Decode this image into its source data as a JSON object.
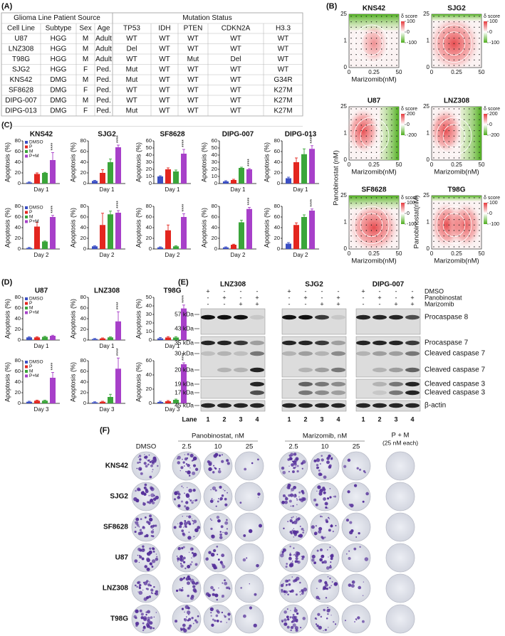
{
  "panel_labels": [
    "(A)",
    "(B)",
    "(C)",
    "(D)",
    "(E)",
    "(F)"
  ],
  "table": {
    "group_headers": [
      "Glioma Line Patient Source",
      "Mutation Status"
    ],
    "columns": [
      "Cell Line",
      "Subtype",
      "Sex",
      "Age",
      "TP53",
      "IDH",
      "PTEN",
      "CDKN2A",
      "H3.3"
    ],
    "rows": [
      [
        "U87",
        "HGG",
        "M",
        "Adult",
        "WT",
        "WT",
        "WT",
        "WT",
        "WT"
      ],
      [
        "LNZ308",
        "HGG",
        "M",
        "Adult",
        "Del",
        "WT",
        "WT",
        "WT",
        "WT"
      ],
      [
        "T98G",
        "HGG",
        "M",
        "Adult",
        "WT",
        "WT",
        "Mut",
        "Del",
        "WT"
      ],
      [
        "SJG2",
        "HGG",
        "F",
        "Ped.",
        "Mut",
        "WT",
        "WT",
        "WT",
        "WT"
      ],
      [
        "KNS42",
        "DMG",
        "M",
        "Ped.",
        "Mut",
        "WT",
        "WT",
        "WT",
        "G34R"
      ],
      [
        "SF8628",
        "DMG",
        "F",
        "Ped.",
        "WT",
        "WT",
        "WT",
        "WT",
        "K27M"
      ],
      [
        "DIPG-007",
        "DMG",
        "M",
        "Ped.",
        "WT",
        "WT",
        "WT",
        "WT",
        "K27M"
      ],
      [
        "DIPG-013",
        "DMG",
        "F",
        "Ped.",
        "Mut",
        "WT",
        "WT",
        "WT",
        "K27M"
      ]
    ]
  },
  "synergy": {
    "colorbar_title": "δ score",
    "x_tick_labels": [
      "0",
      "0.25",
      "50"
    ],
    "y_tick_labels": [
      "0",
      "1",
      "25"
    ],
    "y_label": "Panobinostat (nM)",
    "y_label_t98g": "Panobinostat(nM)",
    "plots": [
      {
        "title": "KNS42",
        "x_label": "Marizomib(nM)",
        "colorbar_ticks": [
          100,
          0,
          -100
        ]
      },
      {
        "title": "SJG2",
        "colorbar_ticks": [
          100,
          0,
          -100
        ]
      },
      {
        "title": "U87",
        "x_label": "Marizomib(nM)",
        "colorbar_ticks": [
          200,
          0,
          -200
        ]
      },
      {
        "title": "LNZ308",
        "x_label": "Marizomib(nM)",
        "colorbar_ticks": [
          200,
          0,
          -200
        ]
      },
      {
        "title": "SF8628",
        "x_label": "Marizomib(nM)",
        "colorbar_ticks": [
          100,
          0,
          -100
        ]
      },
      {
        "title": "T98G",
        "x_label": "Marizomib(nM)",
        "colorbar_ticks": [
          100,
          0,
          -100
        ]
      }
    ]
  },
  "apoptosis": {
    "y_label": "Apoptosis (%)",
    "legend": [
      {
        "name": "DMSO",
        "color": "#3b4fc4"
      },
      {
        "name": "P",
        "color": "#e3261f"
      },
      {
        "name": "M",
        "color": "#3aa53a"
      },
      {
        "name": "P+M",
        "color": "#a740c9"
      }
    ],
    "panel_c": [
      {
        "title": "KNS42",
        "day": "Day 1",
        "values": [
          2,
          18,
          20,
          44
        ],
        "errors": [
          1,
          2,
          1,
          14
        ],
        "ylim": [
          0,
          80
        ],
        "yticks": [
          0,
          20,
          40,
          60,
          80
        ],
        "stars": "****",
        "show_legend": true
      },
      {
        "title": "SJG2",
        "day": "Day 1",
        "values": [
          5,
          20,
          40,
          68
        ],
        "errors": [
          1,
          6,
          6,
          4
        ],
        "ylim": [
          0,
          80
        ],
        "yticks": [
          0,
          20,
          40,
          60,
          80
        ],
        "stars": "****"
      },
      {
        "title": "SF8628",
        "day": "Day 1",
        "values": [
          10,
          20,
          17,
          42
        ],
        "errors": [
          1,
          2,
          2,
          6
        ],
        "ylim": [
          0,
          60
        ],
        "yticks": [
          0,
          10,
          20,
          30,
          40,
          50,
          60
        ],
        "stars": "****"
      },
      {
        "title": "DIPG-007",
        "day": "Day 1",
        "values": [
          3,
          5,
          22,
          20
        ],
        "errors": [
          1,
          1,
          1,
          1
        ],
        "ylim": [
          0,
          60
        ],
        "yticks": [
          0,
          10,
          20,
          30,
          40,
          50,
          60
        ],
        "stars": "****"
      },
      {
        "title": "DIPG-013",
        "day": "Day 1",
        "values": [
          10,
          40,
          55,
          65
        ],
        "errors": [
          2,
          8,
          10,
          6
        ],
        "ylim": [
          0,
          80
        ],
        "yticks": [
          0,
          20,
          40,
          60,
          80
        ],
        "stars": "****"
      },
      {
        "day": "Day 2",
        "values": [
          2,
          42,
          14,
          60
        ],
        "errors": [
          1,
          8,
          1,
          3
        ],
        "ylim": [
          0,
          80
        ],
        "yticks": [
          0,
          20,
          40,
          60,
          80
        ],
        "stars": "****",
        "show_legend": true
      },
      {
        "day": "Day 2",
        "values": [
          5,
          45,
          65,
          68
        ],
        "errors": [
          1,
          22,
          6,
          4
        ],
        "ylim": [
          0,
          80
        ],
        "yticks": [
          0,
          20,
          40,
          60,
          80
        ],
        "stars": "****"
      },
      {
        "day": "Day 2",
        "values": [
          3,
          35,
          5,
          60
        ],
        "errors": [
          1,
          10,
          1,
          6
        ],
        "ylim": [
          0,
          80
        ],
        "yticks": [
          0,
          20,
          40,
          60,
          80
        ],
        "stars": "****"
      },
      {
        "day": "Day 2",
        "values": [
          3,
          8,
          50,
          75
        ],
        "errors": [
          1,
          1,
          4,
          3
        ],
        "ylim": [
          0,
          80
        ],
        "yticks": [
          0,
          20,
          40,
          60,
          80
        ],
        "stars": "****"
      },
      {
        "day": "Day 2",
        "values": [
          10,
          45,
          60,
          72
        ],
        "errors": [
          2,
          4,
          4,
          3
        ],
        "ylim": [
          0,
          80
        ],
        "yticks": [
          0,
          20,
          40,
          60,
          80
        ],
        "stars": "****"
      }
    ],
    "panel_d": [
      {
        "title": "U87",
        "day": "Day 1",
        "values": [
          5,
          5,
          6,
          8
        ],
        "errors": [
          1,
          1,
          1,
          1
        ],
        "ylim": [
          0,
          80
        ],
        "yticks": [
          0,
          20,
          40,
          60,
          80
        ],
        "show_legend": true
      },
      {
        "title": "LNZ308",
        "day": "Day 1",
        "values": [
          2,
          3,
          5,
          35
        ],
        "errors": [
          1,
          1,
          1,
          18
        ],
        "ylim": [
          0,
          80
        ],
        "yticks": [
          0,
          20,
          40,
          60,
          80
        ],
        "stars": "****"
      },
      {
        "title": "T98G",
        "day": "Day 1",
        "values": [
          2,
          3,
          3,
          37
        ],
        "errors": [
          1,
          1,
          1,
          4
        ],
        "ylim": [
          0,
          50
        ],
        "yticks": [
          0,
          10,
          20,
          30,
          40,
          50
        ],
        "stars": "****"
      },
      {
        "day": "Day 3",
        "values": [
          3,
          5,
          5,
          48
        ],
        "errors": [
          1,
          1,
          1,
          10
        ],
        "ylim": [
          0,
          80
        ],
        "yticks": [
          0,
          20,
          40,
          60,
          80
        ],
        "stars": "****",
        "show_legend": true
      },
      {
        "day": "Day 3",
        "values": [
          2,
          3,
          12,
          65
        ],
        "errors": [
          1,
          1,
          5,
          20
        ],
        "ylim": [
          0,
          80
        ],
        "yticks": [
          0,
          20,
          40,
          60,
          80
        ],
        "stars": "****"
      },
      {
        "day": "Day 3",
        "values": [
          2,
          3,
          5,
          55
        ],
        "errors": [
          1,
          1,
          1,
          2
        ],
        "ylim": [
          0,
          60
        ],
        "yticks": [
          0,
          20,
          40,
          60
        ],
        "stars": "****"
      }
    ]
  },
  "western": {
    "cell_lines": [
      "LNZ308",
      "SJG2",
      "DIPG-007"
    ],
    "treatments": [
      {
        "name": "DMSO",
        "signs": [
          "+",
          "-",
          "-",
          "-",
          "+",
          "-",
          "-",
          "-",
          "+",
          "-",
          "-",
          "-"
        ]
      },
      {
        "name": "Panobinostat",
        "signs": [
          "-",
          "+",
          "-",
          "+",
          "-",
          "+",
          "-",
          "+",
          "-",
          "+",
          "-",
          "+"
        ]
      },
      {
        "name": "Marizomib",
        "signs": [
          "-",
          "-",
          "+",
          "+",
          "-",
          "-",
          "+",
          "+",
          "-",
          "-",
          "+",
          "+"
        ]
      }
    ],
    "blocks": [
      {
        "markers": [
          "57 kDa",
          "43 kDa"
        ],
        "proteins": [
          "Procaspase 8"
        ]
      },
      {
        "markers": [
          "35 kDa",
          "30 kDa",
          "20 kDa"
        ],
        "proteins": [
          "Procaspase 7",
          "Cleaved caspase 7",
          "Cleaved caspase 7"
        ]
      },
      {
        "markers": [
          "19 kDa",
          "17 kDa"
        ],
        "proteins": [
          "Cleaved caspase 3",
          "Cleaved caspase 3"
        ]
      },
      {
        "markers": [
          "45 kDa"
        ],
        "proteins": [
          "β-actin"
        ]
      }
    ],
    "lane_label": "Lane",
    "lanes": [
      "1",
      "2",
      "3",
      "4",
      "1",
      "2",
      "3",
      "4",
      "1",
      "2",
      "3",
      "4"
    ]
  },
  "colony": {
    "dmso": "DMSO",
    "groups": [
      {
        "label": "Panobinostat, nM",
        "doses": [
          "2.5",
          "10",
          "25"
        ]
      },
      {
        "label": "Marizomib, nM",
        "doses": [
          "2.5",
          "10",
          "25"
        ]
      }
    ],
    "combo": "P + M",
    "combo_note": "(25 nM each)",
    "rows": [
      "KNS42",
      "SJG2",
      "SF8628",
      "U87",
      "LNZ308",
      "T98G"
    ]
  }
}
